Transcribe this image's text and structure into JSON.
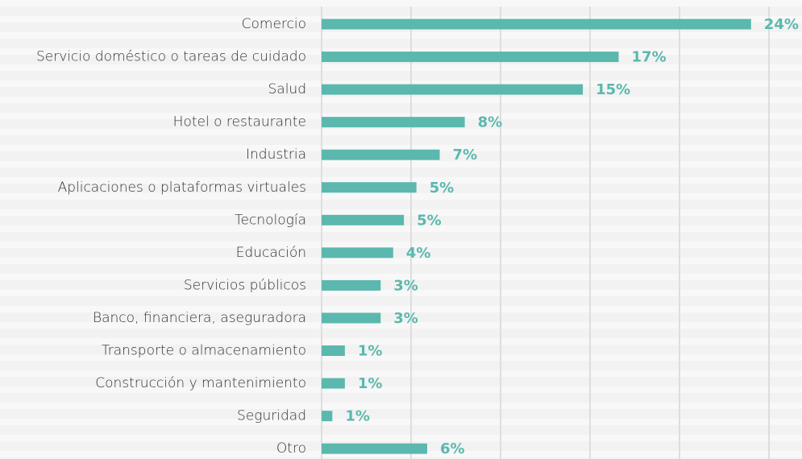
{
  "chart_data": {
    "type": "bar",
    "orientation": "horizontal",
    "categories": [
      "Comercio",
      "Servicio doméstico o tareas de cuidado",
      "Salud",
      "Hotel o restaurante",
      "Industria",
      "Aplicaciones o plataformas virtuales",
      "Tecnología",
      "Educación",
      "Servicios públicos",
      "Banco, financiera, aseguradora",
      "Transporte o almacenamiento",
      "Construcción y mantenimiento",
      "Seguridad",
      "Otro"
    ],
    "values": [
      24.0,
      16.6,
      14.6,
      8.0,
      6.6,
      5.3,
      4.6,
      4.0,
      3.3,
      3.3,
      1.3,
      1.3,
      0.6,
      5.9
    ],
    "value_labels": [
      "24%",
      "17%",
      "15%",
      "8%",
      "7%",
      "5%",
      "5%",
      "4%",
      "3%",
      "3%",
      "1%",
      "1%",
      "1%",
      "6%"
    ],
    "color": "#5bb8ae",
    "xlim": [
      0,
      25
    ],
    "xticks": [
      0,
      5,
      10,
      15,
      20,
      25
    ],
    "grid": true,
    "tick_labels": false
  }
}
